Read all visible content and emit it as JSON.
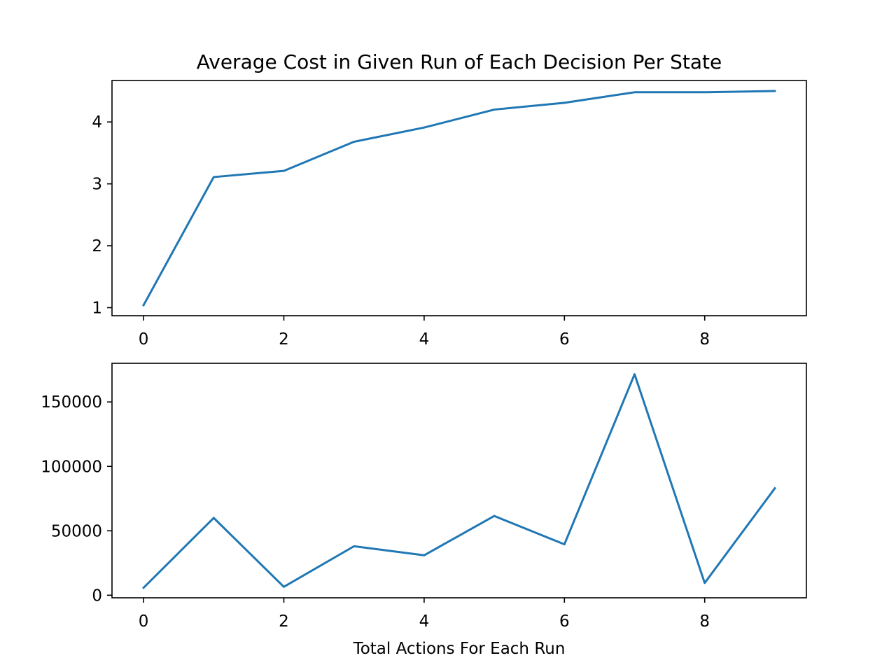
{
  "chart_data": [
    {
      "type": "line",
      "title": "Average Cost in Given Run of Each Decision Per State",
      "xlabel": "",
      "ylabel": "",
      "x": [
        0,
        1,
        2,
        3,
        4,
        5,
        6,
        7,
        8,
        9
      ],
      "series": [
        {
          "values": [
            1.04,
            3.11,
            3.21,
            3.68,
            3.91,
            4.2,
            4.31,
            4.48,
            4.48,
            4.5
          ],
          "color": "#1f77b4"
        }
      ],
      "xlim": [
        -0.45,
        9.45
      ],
      "ylim": [
        0.87,
        4.67
      ],
      "xticks": [
        0,
        2,
        4,
        6,
        8
      ],
      "xtick_labels": [
        "0",
        "2",
        "4",
        "6",
        "8"
      ],
      "yticks": [
        1,
        2,
        3,
        4
      ],
      "ytick_labels": [
        "1",
        "2",
        "3",
        "4"
      ],
      "grid": false
    },
    {
      "type": "line",
      "title": "",
      "xlabel": "Total Actions For Each Run",
      "ylabel": "",
      "x": [
        0,
        1,
        2,
        3,
        4,
        5,
        6,
        7,
        8,
        9
      ],
      "series": [
        {
          "values": [
            5800,
            60000,
            6500,
            38000,
            31000,
            61500,
            39500,
            171500,
            9500,
            83000
          ],
          "color": "#1f77b4"
        }
      ],
      "xlim": [
        -0.45,
        9.45
      ],
      "ylim": [
        -2000,
        180000
      ],
      "xticks": [
        0,
        2,
        4,
        6,
        8
      ],
      "xtick_labels": [
        "0",
        "2",
        "4",
        "6",
        "8"
      ],
      "yticks": [
        0,
        50000,
        100000,
        150000
      ],
      "ytick_labels": [
        "0",
        "50000",
        "100000",
        "150000"
      ],
      "grid": false
    }
  ]
}
